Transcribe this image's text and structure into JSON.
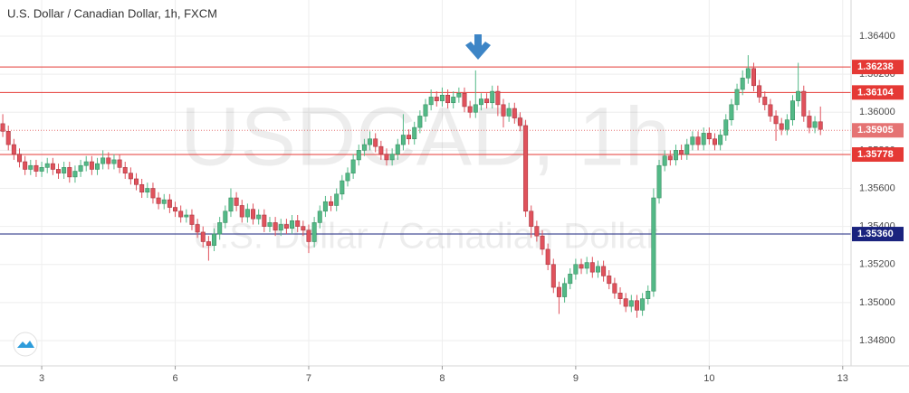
{
  "chart_data": {
    "type": "candlestick",
    "title": "U.S. Dollar / Canadian Dollar, 1h, FXCM",
    "watermark": "USDCAD, 1h",
    "watermark_subtitle": "U.S. Dollar / Canadian Dollar",
    "up_color": "#53b987",
    "down_color": "#e0525c",
    "ylim": [
      1.34667,
      1.3659
    ],
    "yticks": [
      {
        "value": 1.364,
        "label": "1.36400"
      },
      {
        "value": 1.362,
        "label": "1.36200"
      },
      {
        "value": 1.36,
        "label": "1.36000"
      },
      {
        "value": 1.358,
        "label": "1.35800"
      },
      {
        "value": 1.356,
        "label": "1.35600"
      },
      {
        "value": 1.354,
        "label": "1.35400"
      },
      {
        "value": 1.352,
        "label": "1.35200"
      },
      {
        "value": 1.35,
        "label": "1.35000"
      },
      {
        "value": 1.348,
        "label": "1.34800"
      }
    ],
    "xlim": [
      -0.5,
      152.5
    ],
    "xticks": [
      {
        "value": 7,
        "label": "3"
      },
      {
        "value": 31,
        "label": "6"
      },
      {
        "value": 55,
        "label": "7"
      },
      {
        "value": 79,
        "label": "8"
      },
      {
        "value": 103,
        "label": "9"
      },
      {
        "value": 127,
        "label": "10"
      },
      {
        "value": 151,
        "label": "13"
      }
    ],
    "grid": true,
    "levels": [
      {
        "value": 1.36238,
        "label": "1.36238",
        "color": "#e53935",
        "style": "solid"
      },
      {
        "value": 1.36104,
        "label": "1.36104",
        "color": "#e53935",
        "style": "solid"
      },
      {
        "value": 1.35905,
        "label": "1.35905",
        "color": "#e57373",
        "style": "dotted"
      },
      {
        "value": 1.35778,
        "label": "1.35778",
        "color": "#e53935",
        "style": "solid"
      },
      {
        "value": 1.3536,
        "label": "1.35360",
        "color": "#1a237e",
        "style": "solid"
      }
    ],
    "candles": [
      [
        1.3594,
        1.3599,
        1.3587,
        1.359
      ],
      [
        1.359,
        1.3593,
        1.358,
        1.3583
      ],
      [
        1.3583,
        1.3586,
        1.3575,
        1.3578
      ],
      [
        1.3578,
        1.3581,
        1.3571,
        1.3574
      ],
      [
        1.3574,
        1.3577,
        1.3567,
        1.357
      ],
      [
        1.357,
        1.3575,
        1.3567,
        1.3572
      ],
      [
        1.3572,
        1.3575,
        1.3566,
        1.3569
      ],
      [
        1.3569,
        1.3574,
        1.3566,
        1.3571
      ],
      [
        1.3571,
        1.3576,
        1.3568,
        1.3573
      ],
      [
        1.3573,
        1.3576,
        1.3567,
        1.357
      ],
      [
        1.357,
        1.3573,
        1.3565,
        1.3568
      ],
      [
        1.3568,
        1.3574,
        1.3565,
        1.3571
      ],
      [
        1.3571,
        1.3574,
        1.3563,
        1.3566
      ],
      [
        1.3566,
        1.3572,
        1.3563,
        1.3569
      ],
      [
        1.3569,
        1.3575,
        1.3566,
        1.3572
      ],
      [
        1.3572,
        1.3577,
        1.3569,
        1.3574
      ],
      [
        1.3574,
        1.3577,
        1.3567,
        1.357
      ],
      [
        1.357,
        1.3576,
        1.3567,
        1.3573
      ],
      [
        1.3573,
        1.358,
        1.357,
        1.3576
      ],
      [
        1.3576,
        1.3579,
        1.357,
        1.3573
      ],
      [
        1.3573,
        1.3578,
        1.357,
        1.3575
      ],
      [
        1.3575,
        1.3578,
        1.3568,
        1.3571
      ],
      [
        1.3571,
        1.3574,
        1.3565,
        1.3568
      ],
      [
        1.3568,
        1.3571,
        1.3562,
        1.3565
      ],
      [
        1.3565,
        1.3568,
        1.3559,
        1.3562
      ],
      [
        1.3562,
        1.3565,
        1.3555,
        1.3558
      ],
      [
        1.3558,
        1.3563,
        1.3555,
        1.356
      ],
      [
        1.356,
        1.3563,
        1.3552,
        1.3555
      ],
      [
        1.3555,
        1.3558,
        1.3549,
        1.3552
      ],
      [
        1.3552,
        1.3557,
        1.3549,
        1.3554
      ],
      [
        1.3554,
        1.3557,
        1.3547,
        1.355
      ],
      [
        1.355,
        1.3553,
        1.3545,
        1.3548
      ],
      [
        1.3548,
        1.3551,
        1.3542,
        1.3545
      ],
      [
        1.3545,
        1.3549,
        1.3542,
        1.3546
      ],
      [
        1.3546,
        1.3549,
        1.3538,
        1.3541
      ],
      [
        1.3541,
        1.3544,
        1.3534,
        1.3537
      ],
      [
        1.3537,
        1.354,
        1.3529,
        1.3532
      ],
      [
        1.3532,
        1.3535,
        1.3522,
        1.353
      ],
      [
        1.353,
        1.3539,
        1.3527,
        1.3536
      ],
      [
        1.3536,
        1.3545,
        1.3533,
        1.3542
      ],
      [
        1.3542,
        1.3551,
        1.3539,
        1.3548
      ],
      [
        1.3548,
        1.356,
        1.3545,
        1.3555
      ],
      [
        1.3555,
        1.3558,
        1.3548,
        1.3551
      ],
      [
        1.3551,
        1.3554,
        1.3542,
        1.3545
      ],
      [
        1.3545,
        1.3552,
        1.3542,
        1.3549
      ],
      [
        1.3549,
        1.3552,
        1.3541,
        1.3544
      ],
      [
        1.3544,
        1.3549,
        1.3541,
        1.3546
      ],
      [
        1.3546,
        1.3549,
        1.3537,
        1.354
      ],
      [
        1.354,
        1.3545,
        1.3537,
        1.3542
      ],
      [
        1.3542,
        1.3545,
        1.3535,
        1.3538
      ],
      [
        1.3538,
        1.3544,
        1.3535,
        1.3541
      ],
      [
        1.3541,
        1.3544,
        1.3536,
        1.3539
      ],
      [
        1.3539,
        1.3546,
        1.3536,
        1.3543
      ],
      [
        1.3543,
        1.3546,
        1.3537,
        1.354
      ],
      [
        1.354,
        1.3543,
        1.3535,
        1.3538
      ],
      [
        1.3538,
        1.3541,
        1.3526,
        1.3532
      ],
      [
        1.3532,
        1.3545,
        1.3529,
        1.3542
      ],
      [
        1.3542,
        1.3551,
        1.3539,
        1.3548
      ],
      [
        1.3548,
        1.3556,
        1.3545,
        1.3553
      ],
      [
        1.3553,
        1.3556,
        1.3548,
        1.3551
      ],
      [
        1.3551,
        1.356,
        1.3548,
        1.3557
      ],
      [
        1.3557,
        1.3567,
        1.3554,
        1.3564
      ],
      [
        1.3564,
        1.3571,
        1.3561,
        1.3568
      ],
      [
        1.3568,
        1.3578,
        1.3565,
        1.3575
      ],
      [
        1.3575,
        1.3583,
        1.3572,
        1.358
      ],
      [
        1.358,
        1.3586,
        1.3577,
        1.3583
      ],
      [
        1.3583,
        1.359,
        1.358,
        1.3586
      ],
      [
        1.3586,
        1.3589,
        1.3579,
        1.3582
      ],
      [
        1.3582,
        1.3585,
        1.3575,
        1.3578
      ],
      [
        1.3578,
        1.3581,
        1.3572,
        1.3575
      ],
      [
        1.3575,
        1.3581,
        1.3572,
        1.3578
      ],
      [
        1.3578,
        1.3586,
        1.3575,
        1.3583
      ],
      [
        1.3583,
        1.3599,
        1.358,
        1.3588
      ],
      [
        1.3588,
        1.3591,
        1.3583,
        1.3586
      ],
      [
        1.3586,
        1.3595,
        1.3583,
        1.3592
      ],
      [
        1.3592,
        1.3601,
        1.3589,
        1.3598
      ],
      [
        1.3598,
        1.3607,
        1.3595,
        1.3604
      ],
      [
        1.3604,
        1.3612,
        1.3601,
        1.3608
      ],
      [
        1.3608,
        1.3611,
        1.3603,
        1.3606
      ],
      [
        1.3606,
        1.3613,
        1.3603,
        1.3609
      ],
      [
        1.3609,
        1.3612,
        1.3602,
        1.3605
      ],
      [
        1.3605,
        1.3611,
        1.3602,
        1.3608
      ],
      [
        1.3608,
        1.3613,
        1.3605,
        1.361
      ],
      [
        1.361,
        1.3613,
        1.36,
        1.3603
      ],
      [
        1.3603,
        1.3606,
        1.3597,
        1.36
      ],
      [
        1.36,
        1.3622,
        1.3597,
        1.3604
      ],
      [
        1.3604,
        1.361,
        1.3601,
        1.3607
      ],
      [
        1.3607,
        1.361,
        1.3602,
        1.3605
      ],
      [
        1.3605,
        1.3614,
        1.3602,
        1.3611
      ],
      [
        1.3611,
        1.3614,
        1.3598,
        1.3604
      ],
      [
        1.3604,
        1.3607,
        1.3592,
        1.3598
      ],
      [
        1.3598,
        1.3605,
        1.3595,
        1.3602
      ],
      [
        1.3602,
        1.3605,
        1.3594,
        1.3597
      ],
      [
        1.3597,
        1.36,
        1.359,
        1.3593
      ],
      [
        1.3593,
        1.3596,
        1.3545,
        1.3548
      ],
      [
        1.3548,
        1.3551,
        1.3534,
        1.354
      ],
      [
        1.354,
        1.3543,
        1.3532,
        1.3535
      ],
      [
        1.3535,
        1.3538,
        1.3525,
        1.3528
      ],
      [
        1.3528,
        1.3531,
        1.3517,
        1.352
      ],
      [
        1.352,
        1.3523,
        1.3505,
        1.3508
      ],
      [
        1.3508,
        1.3511,
        1.3494,
        1.3503
      ],
      [
        1.3503,
        1.3513,
        1.35,
        1.351
      ],
      [
        1.351,
        1.3518,
        1.3507,
        1.3515
      ],
      [
        1.3515,
        1.3523,
        1.3512,
        1.352
      ],
      [
        1.352,
        1.3523,
        1.3515,
        1.3518
      ],
      [
        1.3518,
        1.3524,
        1.3515,
        1.3521
      ],
      [
        1.3521,
        1.3524,
        1.3513,
        1.3516
      ],
      [
        1.3516,
        1.3522,
        1.3513,
        1.3519
      ],
      [
        1.3519,
        1.3522,
        1.3511,
        1.3514
      ],
      [
        1.3514,
        1.3517,
        1.3507,
        1.351
      ],
      [
        1.351,
        1.3513,
        1.3502,
        1.3505
      ],
      [
        1.3505,
        1.3508,
        1.3499,
        1.3502
      ],
      [
        1.3502,
        1.3505,
        1.3495,
        1.3498
      ],
      [
        1.3498,
        1.3504,
        1.3495,
        1.3501
      ],
      [
        1.3501,
        1.3504,
        1.3492,
        1.3496
      ],
      [
        1.3496,
        1.3505,
        1.3493,
        1.3502
      ],
      [
        1.3502,
        1.3509,
        1.3499,
        1.3506
      ],
      [
        1.3506,
        1.356,
        1.3503,
        1.3555
      ],
      [
        1.3555,
        1.3575,
        1.3552,
        1.3572
      ],
      [
        1.3572,
        1.358,
        1.3569,
        1.3577
      ],
      [
        1.3577,
        1.358,
        1.3572,
        1.3575
      ],
      [
        1.3575,
        1.3583,
        1.3572,
        1.358
      ],
      [
        1.358,
        1.3583,
        1.3575,
        1.3578
      ],
      [
        1.3578,
        1.3586,
        1.3575,
        1.3583
      ],
      [
        1.3583,
        1.359,
        1.358,
        1.3587
      ],
      [
        1.3587,
        1.359,
        1.358,
        1.3583
      ],
      [
        1.3583,
        1.3592,
        1.358,
        1.3589
      ],
      [
        1.3589,
        1.3592,
        1.3583,
        1.3586
      ],
      [
        1.3586,
        1.3589,
        1.358,
        1.3583
      ],
      [
        1.3583,
        1.3591,
        1.358,
        1.3588
      ],
      [
        1.3588,
        1.3599,
        1.3585,
        1.3596
      ],
      [
        1.3596,
        1.3607,
        1.3593,
        1.3604
      ],
      [
        1.3604,
        1.3615,
        1.3601,
        1.3612
      ],
      [
        1.3612,
        1.3622,
        1.3609,
        1.3618
      ],
      [
        1.3618,
        1.363,
        1.3615,
        1.3623
      ],
      [
        1.3623,
        1.3626,
        1.3611,
        1.3614
      ],
      [
        1.3614,
        1.3617,
        1.3605,
        1.3608
      ],
      [
        1.3608,
        1.3611,
        1.3601,
        1.3604
      ],
      [
        1.3604,
        1.3607,
        1.3595,
        1.3598
      ],
      [
        1.3598,
        1.3601,
        1.3585,
        1.3594
      ],
      [
        1.3594,
        1.3597,
        1.3588,
        1.3591
      ],
      [
        1.3591,
        1.3599,
        1.3588,
        1.3596
      ],
      [
        1.3596,
        1.3609,
        1.3593,
        1.3606
      ],
      [
        1.3606,
        1.3626,
        1.3603,
        1.3611
      ],
      [
        1.3611,
        1.3614,
        1.3595,
        1.3598
      ],
      [
        1.3598,
        1.3601,
        1.3589,
        1.3592
      ],
      [
        1.3592,
        1.3598,
        1.3589,
        1.3595
      ],
      [
        1.3595,
        1.3603,
        1.3588,
        1.3591
      ]
    ]
  }
}
